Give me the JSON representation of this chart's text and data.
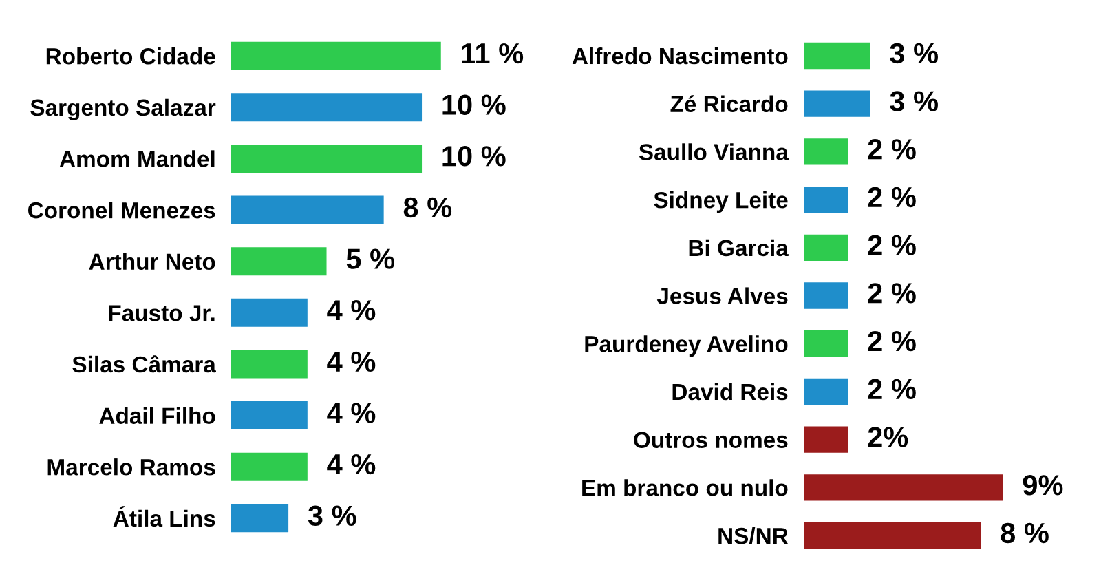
{
  "chart_data": [
    {
      "type": "bar",
      "orientation": "horizontal",
      "tick_labels": "y",
      "grid": false,
      "legend": false,
      "categories": [
        "Roberto Cidade",
        "Sargento Salazar",
        "Amom Mandel",
        "Coronel Menezes",
        "Arthur Neto",
        "Fausto Jr.",
        "Silas Câmara",
        "Adail Filho",
        "Marcelo Ramos",
        "Átila Lins"
      ],
      "values": [
        11,
        10,
        10,
        8,
        5,
        4,
        4,
        4,
        4,
        3
      ],
      "colors": [
        "#2ecb4e",
        "#1f8ecb",
        "#2ecb4e",
        "#1f8ecb",
        "#2ecb4e",
        "#1f8ecb",
        "#2ecb4e",
        "#1f8ecb",
        "#2ecb4e",
        "#1f8ecb"
      ],
      "value_labels": [
        "11 %",
        "10 %",
        "10 %",
        "8 %",
        "5 %",
        "4 %",
        "4 %",
        "4 %",
        "4 %",
        "3 %"
      ]
    },
    {
      "type": "bar",
      "orientation": "horizontal",
      "tick_labels": "y",
      "grid": false,
      "legend": false,
      "categories": [
        "Alfredo Nascimento",
        "Zé Ricardo",
        "Saullo Vianna",
        "Sidney Leite",
        "Bi Garcia",
        "Jesus Alves",
        "Paurdeney Avelino",
        "David Reis",
        "Outros nomes",
        "Em branco ou nulo",
        "NS/NR"
      ],
      "values": [
        3,
        3,
        2,
        2,
        2,
        2,
        2,
        2,
        2,
        9,
        8
      ],
      "colors": [
        "#2ecb4e",
        "#1f8ecb",
        "#2ecb4e",
        "#1f8ecb",
        "#2ecb4e",
        "#1f8ecb",
        "#2ecb4e",
        "#1f8ecb",
        "#9b1c1c",
        "#9b1c1c",
        "#9b1c1c"
      ],
      "value_labels": [
        "3 %",
        "3 %",
        "2 %",
        "2 %",
        "2 %",
        "2 %",
        "2 %",
        "2 %",
        "2%",
        "9%",
        "8 %"
      ]
    }
  ]
}
